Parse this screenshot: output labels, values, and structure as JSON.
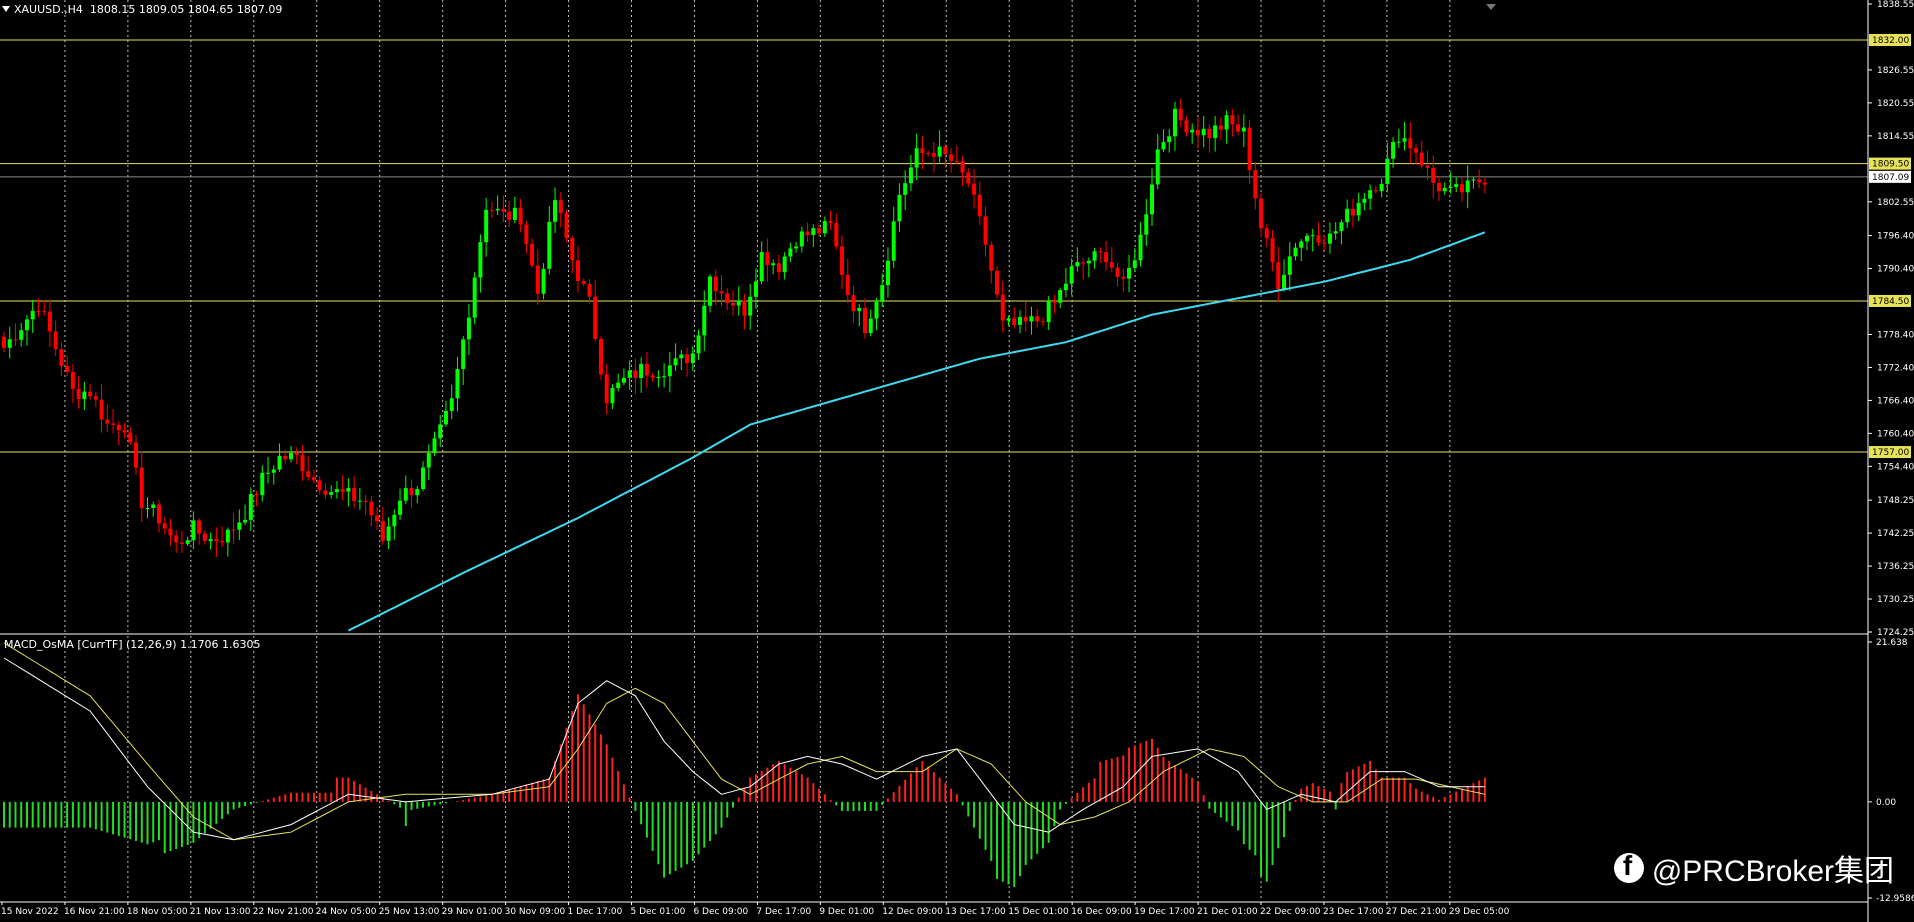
{
  "header": {
    "symbol": "XAUUSD.,H4",
    "quote": "1808.15 1809.05 1804.65 1807.09"
  },
  "macd_label": "MACD_OsMA [CurrTF] (12,26,9) 1.1706 1.6305",
  "watermark": "@PRCBroker集团",
  "colors": {
    "background": "#000000",
    "bull": "#00ff00",
    "bear": "#ff0000",
    "ma": "#3fd9f2",
    "level": "#e6e35a",
    "macd_signal": "#e6e35a",
    "macd_main": "#ffffff",
    "hist_up": "#ff2020",
    "hist_down": "#22dd22"
  },
  "price_axis": {
    "ticks": [
      "1838.55",
      "1832.00",
      "1826.55",
      "1820.55",
      "1814.55",
      "1809.50",
      "1807.09",
      "1802.55",
      "1796.40",
      "1790.40",
      "1784.50",
      "1778.40",
      "1772.40",
      "1766.40",
      "1760.40",
      "1757.00",
      "1754.40",
      "1748.25",
      "1742.25",
      "1736.25",
      "1730.25",
      "1724.25"
    ],
    "tick_values": [
      1838.55,
      1832.0,
      1826.55,
      1820.55,
      1814.55,
      1809.5,
      1807.09,
      1802.55,
      1796.4,
      1790.4,
      1784.5,
      1778.4,
      1772.4,
      1766.4,
      1760.4,
      1757.0,
      1754.4,
      1748.25,
      1742.25,
      1736.25,
      1730.25,
      1724.25
    ],
    "range": [
      1724.25,
      1838.55
    ]
  },
  "levels": [
    {
      "label": "1832.00",
      "value": 1832.0
    },
    {
      "label": "1809.50",
      "value": 1809.5
    },
    {
      "label": "1784.50",
      "value": 1784.5
    },
    {
      "label": "1757.00",
      "value": 1757.0
    }
  ],
  "current_price": {
    "label": "1807.09",
    "value": 1807.09
  },
  "macd_axis": {
    "ticks": [
      "21.638",
      "0.00",
      "-12.9586"
    ],
    "tick_values": [
      21.638,
      0.0,
      -12.9586
    ],
    "range": [
      -12.9586,
      21.638
    ]
  },
  "time_labels": [
    "15 Nov 2022",
    "16 Nov 21:00",
    "18 Nov 05:00",
    "21 Nov 13:00",
    "22 Nov 21:00",
    "24 Nov 05:00",
    "25 Nov 13:00",
    "29 Nov 01:00",
    "30 Nov 09:00",
    "1 Dec 17:00",
    "5 Dec 01:00",
    "6 Dec 09:00",
    "7 Dec 17:00",
    "9 Dec 01:00",
    "12 Dec 09:00",
    "13 Dec 17:00",
    "15 Dec 01:00",
    "16 Dec 09:00",
    "19 Dec 17:00",
    "21 Dec 01:00",
    "22 Dec 09:00",
    "23 Dec 17:00",
    "27 Dec 21:00",
    "29 Dec 05:00"
  ],
  "chart_data": {
    "type": "candlestick",
    "symbol": "XAUUSD.",
    "timeframe": "H4",
    "close_anchors": [
      [
        0,
        1776
      ],
      [
        3,
        1780
      ],
      [
        6,
        1784
      ],
      [
        9,
        1776
      ],
      [
        12,
        1768
      ],
      [
        15,
        1768
      ],
      [
        18,
        1762
      ],
      [
        21,
        1762
      ],
      [
        24,
        1748
      ],
      [
        27,
        1745
      ],
      [
        30,
        1740
      ],
      [
        33,
        1743
      ],
      [
        36,
        1741
      ],
      [
        39,
        1742
      ],
      [
        42,
        1746
      ],
      [
        45,
        1752
      ],
      [
        48,
        1756
      ],
      [
        51,
        1756
      ],
      [
        54,
        1752
      ],
      [
        57,
        1750
      ],
      [
        60,
        1749
      ],
      [
        63,
        1748
      ],
      [
        66,
        1741
      ],
      [
        69,
        1749
      ],
      [
        72,
        1751
      ],
      [
        75,
        1758
      ],
      [
        78,
        1766
      ],
      [
        81,
        1783
      ],
      [
        84,
        1802
      ],
      [
        87,
        1800
      ],
      [
        90,
        1800
      ],
      [
        93,
        1786
      ],
      [
        96,
        1803
      ],
      [
        99,
        1792
      ],
      [
        102,
        1784
      ],
      [
        105,
        1767
      ],
      [
        108,
        1770
      ],
      [
        111,
        1772
      ],
      [
        114,
        1772
      ],
      [
        117,
        1773
      ],
      [
        120,
        1775
      ],
      [
        123,
        1789
      ],
      [
        126,
        1785
      ],
      [
        129,
        1783
      ],
      [
        132,
        1793
      ],
      [
        135,
        1791
      ],
      [
        138,
        1796
      ],
      [
        141,
        1797
      ],
      [
        144,
        1798
      ],
      [
        147,
        1786
      ],
      [
        150,
        1780
      ],
      [
        153,
        1788
      ],
      [
        156,
        1804
      ],
      [
        159,
        1811
      ],
      [
        162,
        1812
      ],
      [
        165,
        1810
      ],
      [
        168,
        1806
      ],
      [
        171,
        1795
      ],
      [
        174,
        1780
      ],
      [
        177,
        1780
      ],
      [
        180,
        1781
      ],
      [
        183,
        1784
      ],
      [
        186,
        1790
      ],
      [
        189,
        1792
      ],
      [
        192,
        1793
      ],
      [
        195,
        1787
      ],
      [
        198,
        1796
      ],
      [
        201,
        1812
      ],
      [
        204,
        1818
      ],
      [
        207,
        1816
      ],
      [
        210,
        1815
      ],
      [
        213,
        1817
      ],
      [
        216,
        1815
      ],
      [
        219,
        1798
      ],
      [
        222,
        1788
      ],
      [
        225,
        1795
      ],
      [
        228,
        1797
      ],
      [
        231,
        1796
      ],
      [
        234,
        1800
      ],
      [
        237,
        1804
      ],
      [
        240,
        1807
      ],
      [
        243,
        1815
      ],
      [
        246,
        1812
      ],
      [
        249,
        1806
      ],
      [
        252,
        1804
      ],
      [
        255,
        1805
      ],
      [
        258,
        1807
      ]
    ],
    "ma_anchors": [
      [
        60,
        1724.5
      ],
      [
        80,
        1735
      ],
      [
        100,
        1745
      ],
      [
        120,
        1756
      ],
      [
        130,
        1762
      ],
      [
        150,
        1768
      ],
      [
        170,
        1774
      ],
      [
        185,
        1777
      ],
      [
        200,
        1782
      ],
      [
        215,
        1785
      ],
      [
        230,
        1788
      ],
      [
        245,
        1792
      ],
      [
        258,
        1797
      ]
    ],
    "macd_main_anchors": [
      [
        0,
        19
      ],
      [
        15,
        12
      ],
      [
        25,
        2
      ],
      [
        33,
        -4
      ],
      [
        40,
        -5
      ],
      [
        50,
        -3
      ],
      [
        60,
        1
      ],
      [
        70,
        0
      ],
      [
        85,
        1
      ],
      [
        95,
        3
      ],
      [
        100,
        13
      ],
      [
        105,
        16
      ],
      [
        110,
        14
      ],
      [
        115,
        8
      ],
      [
        120,
        4
      ],
      [
        125,
        1
      ],
      [
        130,
        2
      ],
      [
        135,
        5
      ],
      [
        140,
        6
      ],
      [
        146,
        5
      ],
      [
        152,
        3
      ],
      [
        160,
        6
      ],
      [
        166,
        7
      ],
      [
        170,
        3
      ],
      [
        176,
        -3
      ],
      [
        182,
        -4
      ],
      [
        188,
        -1
      ],
      [
        195,
        2
      ],
      [
        200,
        6
      ],
      [
        208,
        7
      ],
      [
        215,
        4
      ],
      [
        220,
        -1
      ],
      [
        226,
        1
      ],
      [
        232,
        0
      ],
      [
        238,
        4
      ],
      [
        244,
        4
      ],
      [
        250,
        2
      ],
      [
        258,
        2
      ]
    ],
    "macd_signal_anchors": [
      [
        0,
        21
      ],
      [
        15,
        14
      ],
      [
        25,
        5
      ],
      [
        33,
        -2
      ],
      [
        40,
        -5
      ],
      [
        50,
        -4
      ],
      [
        60,
        0
      ],
      [
        70,
        1
      ],
      [
        85,
        1
      ],
      [
        95,
        2
      ],
      [
        100,
        7
      ],
      [
        105,
        13
      ],
      [
        110,
        15
      ],
      [
        115,
        13
      ],
      [
        120,
        8
      ],
      [
        125,
        3
      ],
      [
        130,
        1
      ],
      [
        135,
        3
      ],
      [
        140,
        5
      ],
      [
        146,
        6
      ],
      [
        152,
        4
      ],
      [
        160,
        4
      ],
      [
        166,
        7
      ],
      [
        172,
        5
      ],
      [
        178,
        0
      ],
      [
        184,
        -3
      ],
      [
        190,
        -2
      ],
      [
        196,
        0
      ],
      [
        202,
        4
      ],
      [
        210,
        7
      ],
      [
        216,
        6
      ],
      [
        222,
        2
      ],
      [
        228,
        0
      ],
      [
        234,
        0
      ],
      [
        240,
        3
      ],
      [
        246,
        3
      ],
      [
        252,
        2
      ],
      [
        258,
        1
      ]
    ]
  }
}
